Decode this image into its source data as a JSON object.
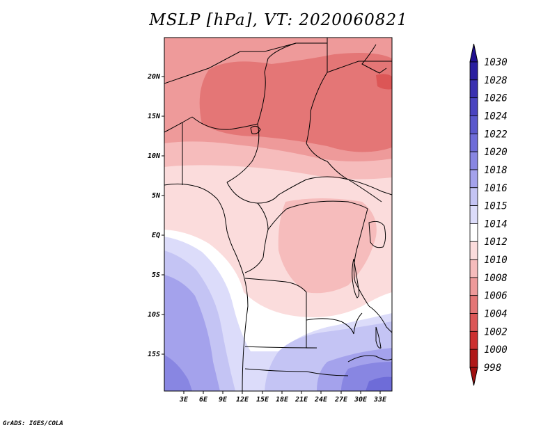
{
  "title": "MSLP [hPa], VT: 2020060821",
  "credit": "GrADS: IGES/COLA",
  "map": {
    "region": "Central Africa",
    "lat_labels": [
      "20N",
      "15N",
      "10N",
      "5N",
      "EQ",
      "5S",
      "10S",
      "15S"
    ],
    "lon_labels": [
      "3E",
      "6E",
      "9E",
      "12E",
      "15E",
      "18E",
      "21E",
      "24E",
      "27E",
      "30E",
      "33E"
    ]
  },
  "colorbar": {
    "levels": [
      "1030",
      "1028",
      "1026",
      "1024",
      "1022",
      "1020",
      "1018",
      "1016",
      "1015",
      "1014",
      "1012",
      "1010",
      "1008",
      "1006",
      "1004",
      "1002",
      "1000",
      "998"
    ],
    "colors": [
      "#201090",
      "#2a1fa0",
      "#3a30b0",
      "#4a44c0",
      "#5a58cc",
      "#6e6cd8",
      "#8886e2",
      "#a4a2ec",
      "#c4c4f4",
      "#dcdcfa",
      "#ffffff",
      "#fbdcdc",
      "#f6bcbc",
      "#ee9a9a",
      "#e47676",
      "#dc5656",
      "#cc3030",
      "#b01818",
      "#a01010"
    ]
  }
}
